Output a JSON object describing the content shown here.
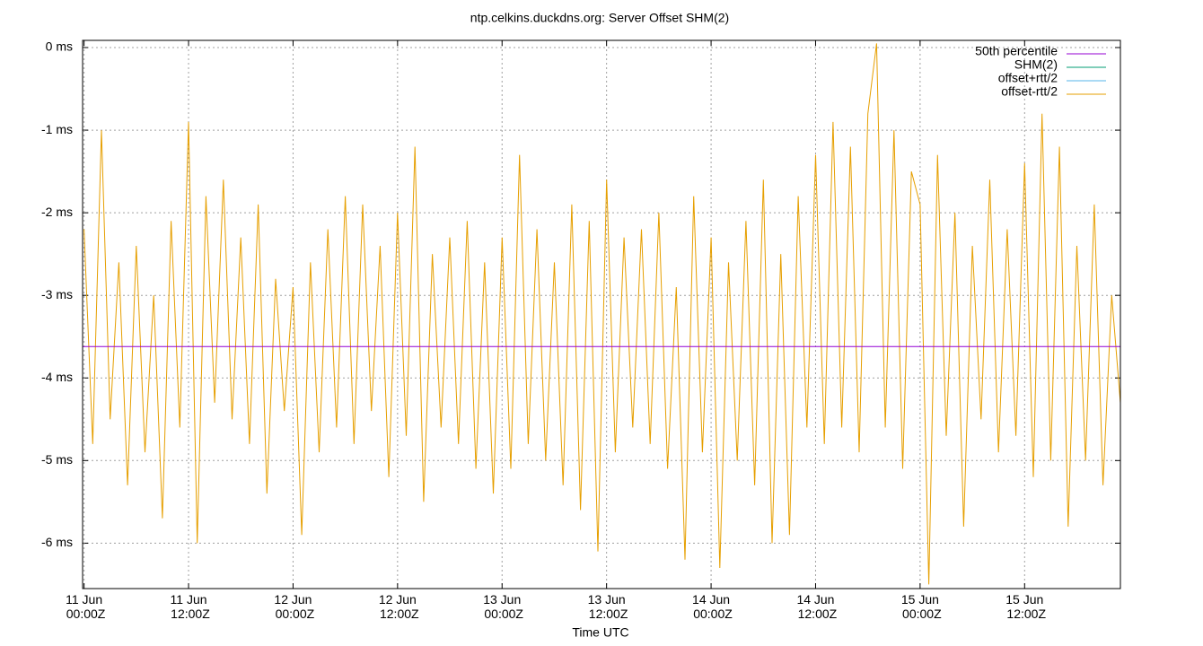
{
  "chart_data": {
    "type": "line",
    "title": "ntp.celkins.duckdns.org: Server Offset SHM(2)",
    "xlabel": "Time UTC",
    "xlim": [
      "10 Jun 23:50Z",
      "15 Jun 23:00Z"
    ],
    "ylim": [
      -6.55,
      0.087
    ],
    "grid": true,
    "legend": "top-right",
    "xticks": [
      {
        "value": "11 Jun 00:00Z",
        "label": "11 Jun 00:00Z"
      },
      {
        "value": "11 Jun 12:00Z",
        "label": "11 Jun 12:00Z"
      },
      {
        "value": "12 Jun 00:00Z",
        "label": "12 Jun 00:00Z"
      },
      {
        "value": "12 Jun 12:00Z",
        "label": "12 Jun 12:00Z"
      },
      {
        "value": "13 Jun 00:00Z",
        "label": "13 Jun 00:00Z"
      },
      {
        "value": "13 Jun 12:00Z",
        "label": "13 Jun 12:00Z"
      },
      {
        "value": "14 Jun 00:00Z",
        "label": "14 Jun 00:00Z"
      },
      {
        "value": "14 Jun 12:00Z",
        "label": "14 Jun 12:00Z"
      },
      {
        "value": "15 Jun 00:00Z",
        "label": "15 Jun 00:00Z"
      },
      {
        "value": "15 Jun 12:00Z",
        "label": "15 Jun 12:00Z"
      }
    ],
    "yticks": [
      {
        "value": 0,
        "label": "0 ms"
      },
      {
        "value": -1,
        "label": "-1 ms"
      },
      {
        "value": -2,
        "label": "-2 ms"
      },
      {
        "value": -3,
        "label": "-3 ms"
      },
      {
        "value": -4,
        "label": "-4 ms"
      },
      {
        "value": -5,
        "label": "-5 ms"
      },
      {
        "value": -6,
        "label": "-6 ms"
      }
    ],
    "series": [
      {
        "name": "50th percentile",
        "color": "#9400d3",
        "x": [
          "10 Jun 23:50Z",
          "15 Jun 23:00Z"
        ],
        "values": [
          -3.62,
          -3.62
        ]
      },
      {
        "name": "SHM(2)",
        "color": "#009e73",
        "x": [],
        "values": []
      },
      {
        "name": "offset+rtt/2",
        "color": "#56b4e9",
        "x": [],
        "values": []
      },
      {
        "name": "offset-rtt/2",
        "color": "#e69f00",
        "x": [
          "11 Jun 00:00Z",
          "11 Jun 01:00Z",
          "11 Jun 02:00Z",
          "11 Jun 03:00Z",
          "11 Jun 04:00Z",
          "11 Jun 05:00Z",
          "11 Jun 06:00Z",
          "11 Jun 07:00Z",
          "11 Jun 08:00Z",
          "11 Jun 09:00Z",
          "11 Jun 10:00Z",
          "11 Jun 11:00Z",
          "11 Jun 12:00Z",
          "11 Jun 13:00Z",
          "11 Jun 14:00Z",
          "11 Jun 15:00Z",
          "11 Jun 16:00Z",
          "11 Jun 17:00Z",
          "11 Jun 18:00Z",
          "11 Jun 19:00Z",
          "11 Jun 20:00Z",
          "11 Jun 21:00Z",
          "11 Jun 22:00Z",
          "11 Jun 23:00Z",
          "12 Jun 00:00Z",
          "12 Jun 01:00Z",
          "12 Jun 02:00Z",
          "12 Jun 03:00Z",
          "12 Jun 04:00Z",
          "12 Jun 05:00Z",
          "12 Jun 06:00Z",
          "12 Jun 07:00Z",
          "12 Jun 08:00Z",
          "12 Jun 09:00Z",
          "12 Jun 10:00Z",
          "12 Jun 11:00Z",
          "12 Jun 12:00Z",
          "12 Jun 13:00Z",
          "12 Jun 14:00Z",
          "12 Jun 15:00Z",
          "12 Jun 16:00Z",
          "12 Jun 17:00Z",
          "12 Jun 18:00Z",
          "12 Jun 19:00Z",
          "12 Jun 20:00Z",
          "12 Jun 21:00Z",
          "12 Jun 22:00Z",
          "12 Jun 23:00Z",
          "13 Jun 00:00Z",
          "13 Jun 01:00Z",
          "13 Jun 02:00Z",
          "13 Jun 03:00Z",
          "13 Jun 04:00Z",
          "13 Jun 05:00Z",
          "13 Jun 06:00Z",
          "13 Jun 07:00Z",
          "13 Jun 08:00Z",
          "13 Jun 09:00Z",
          "13 Jun 10:00Z",
          "13 Jun 11:00Z",
          "13 Jun 12:00Z",
          "13 Jun 13:00Z",
          "13 Jun 14:00Z",
          "13 Jun 15:00Z",
          "13 Jun 16:00Z",
          "13 Jun 17:00Z",
          "13 Jun 18:00Z",
          "13 Jun 19:00Z",
          "13 Jun 20:00Z",
          "13 Jun 21:00Z",
          "13 Jun 22:00Z",
          "13 Jun 23:00Z",
          "14 Jun 00:00Z",
          "14 Jun 01:00Z",
          "14 Jun 02:00Z",
          "14 Jun 03:00Z",
          "14 Jun 04:00Z",
          "14 Jun 05:00Z",
          "14 Jun 06:00Z",
          "14 Jun 07:00Z",
          "14 Jun 08:00Z",
          "14 Jun 09:00Z",
          "14 Jun 10:00Z",
          "14 Jun 11:00Z",
          "14 Jun 12:00Z",
          "14 Jun 13:00Z",
          "14 Jun 14:00Z",
          "14 Jun 15:00Z",
          "14 Jun 16:00Z",
          "14 Jun 17:00Z",
          "14 Jun 18:00Z",
          "14 Jun 19:00Z",
          "14 Jun 20:00Z",
          "14 Jun 21:00Z",
          "14 Jun 22:00Z",
          "14 Jun 23:00Z",
          "15 Jun 00:00Z",
          "15 Jun 01:00Z",
          "15 Jun 02:00Z",
          "15 Jun 03:00Z",
          "15 Jun 04:00Z",
          "15 Jun 05:00Z",
          "15 Jun 06:00Z",
          "15 Jun 07:00Z",
          "15 Jun 08:00Z",
          "15 Jun 09:00Z",
          "15 Jun 10:00Z",
          "15 Jun 11:00Z",
          "15 Jun 12:00Z",
          "15 Jun 13:00Z",
          "15 Jun 14:00Z",
          "15 Jun 15:00Z",
          "15 Jun 16:00Z",
          "15 Jun 17:00Z",
          "15 Jun 18:00Z",
          "15 Jun 19:00Z",
          "15 Jun 20:00Z",
          "15 Jun 21:00Z",
          "15 Jun 22:00Z",
          "15 Jun 23:00Z"
        ],
        "values": [
          -2.2,
          -4.8,
          -1.0,
          -4.5,
          -2.6,
          -5.3,
          -2.4,
          -4.9,
          -3.0,
          -5.7,
          -2.1,
          -4.6,
          -0.9,
          -6.0,
          -1.8,
          -4.3,
          -1.6,
          -4.5,
          -2.3,
          -4.8,
          -1.9,
          -5.4,
          -2.8,
          -4.4,
          -2.9,
          -5.9,
          -2.6,
          -4.9,
          -2.2,
          -4.6,
          -1.8,
          -4.8,
          -1.9,
          -4.4,
          -2.4,
          -5.2,
          -2.0,
          -4.7,
          -1.2,
          -5.5,
          -2.5,
          -4.6,
          -2.3,
          -4.8,
          -2.1,
          -5.1,
          -2.6,
          -5.4,
          -2.3,
          -5.1,
          -1.3,
          -4.8,
          -2.2,
          -5.0,
          -2.6,
          -5.3,
          -1.9,
          -5.6,
          -2.1,
          -6.1,
          -1.6,
          -4.9,
          -2.3,
          -4.6,
          -2.2,
          -4.8,
          -2.0,
          -5.1,
          -2.9,
          -6.2,
          -1.8,
          -4.9,
          -2.3,
          -6.3,
          -2.6,
          -5.0,
          -2.1,
          -5.3,
          -1.6,
          -6.0,
          -2.5,
          -5.9,
          -1.8,
          -4.6,
          -1.3,
          -4.8,
          -0.9,
          -4.6,
          -1.2,
          -4.9,
          -0.8,
          0.05,
          -4.6,
          -1.0,
          -5.1,
          -1.5,
          -1.9,
          -6.5,
          -1.3,
          -4.7,
          -2.0,
          -5.8,
          -2.4,
          -4.5,
          -1.6,
          -4.9,
          -2.2,
          -4.7,
          -1.4,
          -5.2,
          -0.8,
          -5.0,
          -1.2,
          -5.8,
          -2.4,
          -5.0,
          -1.9,
          -5.3,
          -3.0,
          -4.3
        ]
      }
    ]
  }
}
